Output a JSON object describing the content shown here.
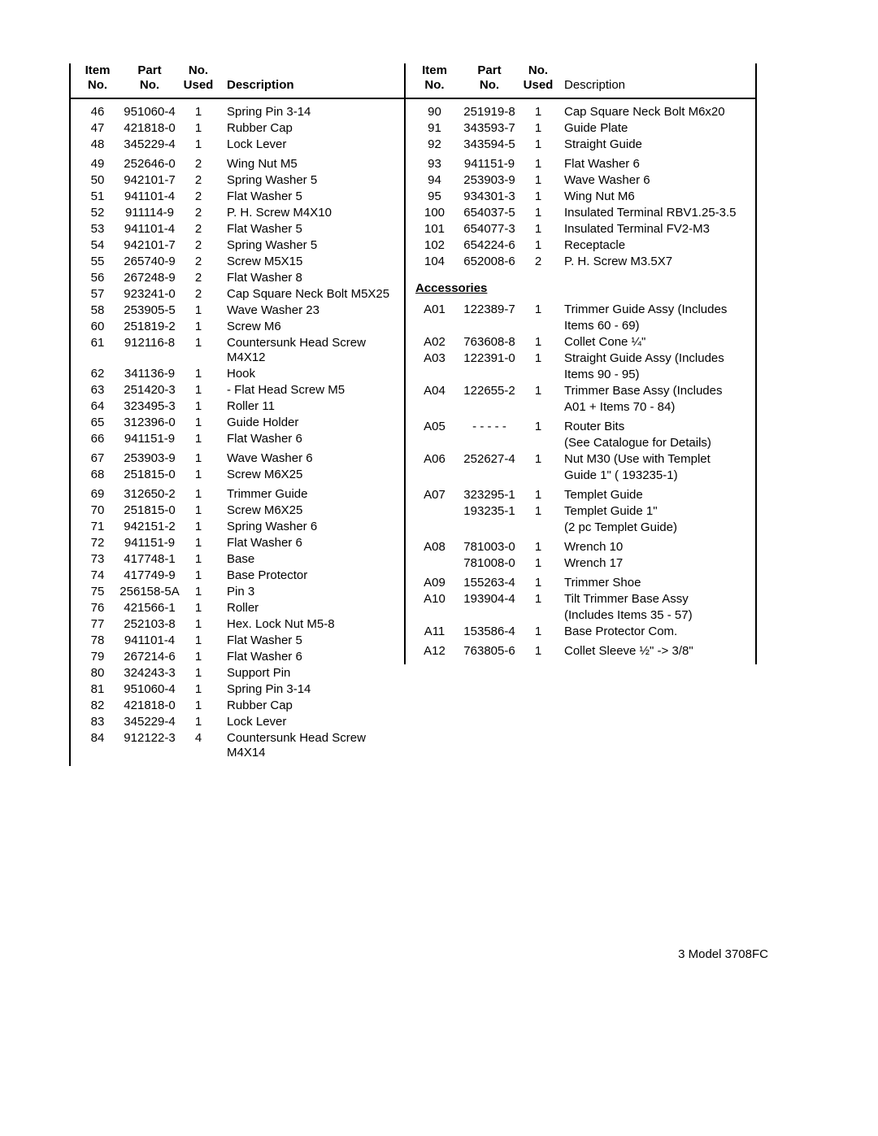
{
  "header": {
    "item1": "Item",
    "item2": "No.",
    "part1": "Part",
    "part2": "No.",
    "used1": "No.",
    "used2": "Used",
    "desc": "Description"
  },
  "left_rows": [
    {
      "i": "46",
      "p": "951060-4",
      "u": "1",
      "d": "Spring Pin 3-14"
    },
    {
      "i": "47",
      "p": "421818-0",
      "u": "1",
      "d": "Rubber Cap"
    },
    {
      "i": "48",
      "p": "345229-4",
      "u": "1",
      "d": "Lock Lever"
    },
    {
      "gap": true
    },
    {
      "i": "49",
      "p": "252646-0",
      "u": "2",
      "d": "Wing Nut M5"
    },
    {
      "i": "50",
      "p": "942101-7",
      "u": "2",
      "d": "Spring Washer 5"
    },
    {
      "i": "51",
      "p": "941101-4",
      "u": "2",
      "d": "Flat Washer 5"
    },
    {
      "i": "52",
      "p": "911114-9",
      "u": "2",
      "d": "P. H.  Screw M4X10"
    },
    {
      "i": "53",
      "p": "941101-4",
      "u": "2",
      "d": "Flat Washer 5"
    },
    {
      "i": "54",
      "p": "942101-7",
      "u": "2",
      "d": "Spring Washer 5"
    },
    {
      "i": "55",
      "p": "265740-9",
      "u": "2",
      "d": "Screw M5X15"
    },
    {
      "i": "56",
      "p": "267248-9",
      "u": "2",
      "d": "Flat Washer 8"
    },
    {
      "i": "57",
      "p": "923241-0",
      "u": "2",
      "d": "Cap Square Neck Bolt M5X25"
    },
    {
      "i": "58",
      "p": "253905-5",
      "u": "1",
      "d": "Wave Washer 23"
    },
    {
      "i": "60",
      "p": "251819-2",
      "u": "1",
      "d": "Screw M6"
    },
    {
      "i": "61",
      "p": "912116-8",
      "u": "1",
      "d": "Countersunk Head Screw M4X12"
    },
    {
      "i": "62",
      "p": "341136-9",
      "u": "1",
      "d": "Hook"
    },
    {
      "i": "63",
      "p": "251420-3",
      "u": "1",
      "d": " - Flat Head Screw M5"
    },
    {
      "i": "64",
      "p": "323495-3",
      "u": "1",
      "d": "Roller 11"
    },
    {
      "i": "65",
      "p": "312396-0",
      "u": "1",
      "d": "Guide Holder"
    },
    {
      "i": "66",
      "p": "941151-9",
      "u": "1",
      "d": "Flat Washer 6"
    },
    {
      "gap": true
    },
    {
      "i": "67",
      "p": "253903-9",
      "u": "1",
      "d": "Wave Washer 6"
    },
    {
      "i": "68",
      "p": "251815-0",
      "u": "1",
      "d": "Screw M6X25"
    },
    {
      "gap": true
    },
    {
      "i": "69",
      "p": "312650-2",
      "u": "1",
      "d": "Trimmer Guide"
    },
    {
      "i": "70",
      "p": "251815-0",
      "u": "1",
      "d": "Screw M6X25"
    },
    {
      "i": "71",
      "p": "942151-2",
      "u": "1",
      "d": "Spring Washer 6"
    },
    {
      "i": "72",
      "p": "941151-9",
      "u": "1",
      "d": "Flat Washer 6"
    },
    {
      "i": "73",
      "p": "417748-1",
      "u": "1",
      "d": "Base"
    },
    {
      "i": "74",
      "p": "417749-9",
      "u": "1",
      "d": "Base Protector"
    },
    {
      "i": "75",
      "p": "256158-5A",
      "u": "1",
      "d": "Pin 3"
    },
    {
      "i": "76",
      "p": "421566-1",
      "u": "1",
      "d": "Roller"
    },
    {
      "i": "77",
      "p": "252103-8",
      "u": "1",
      "d": "Hex. Lock Nut M5-8"
    },
    {
      "i": "78",
      "p": "941101-4",
      "u": "1",
      "d": "Flat Washer 5"
    },
    {
      "i": "79",
      "p": "267214-6",
      "u": "1",
      "d": "Flat Washer 6"
    },
    {
      "i": "80",
      "p": "324243-3",
      "u": "1",
      "d": "Support Pin"
    },
    {
      "i": "81",
      "p": "951060-4",
      "u": "1",
      "d": "Spring Pin 3-14"
    },
    {
      "i": "82",
      "p": "421818-0",
      "u": "1",
      "d": "Rubber Cap"
    },
    {
      "i": "83",
      "p": "345229-4",
      "u": "1",
      "d": "Lock Lever"
    },
    {
      "i": "84",
      "p": "912122-3",
      "u": "4",
      "d": "Countersunk Head Screw M4X14"
    }
  ],
  "right_rows_top": [
    {
      "i": "90",
      "p": "251919-8",
      "u": "1",
      "d": "Cap Square Neck Bolt M6x20"
    },
    {
      "i": "91",
      "p": "343593-7",
      "u": "1",
      "d": "Guide Plate"
    },
    {
      "i": "92",
      "p": "343594-5",
      "u": "1",
      "d": "Straight Guide"
    },
    {
      "gap": true
    },
    {
      "i": "93",
      "p": "941151-9",
      "u": "1",
      "d": "Flat Washer 6"
    },
    {
      "i": "94",
      "p": "253903-9",
      "u": "1",
      "d": "Wave Washer 6"
    },
    {
      "i": "95",
      "p": "934301-3",
      "u": "1",
      "d": "Wing Nut M6"
    },
    {
      "i": "100",
      "p": "654037-5",
      "u": "1",
      "d": "Insulated Terminal RBV1.25-3.5"
    },
    {
      "i": "101",
      "p": "654077-3",
      "u": "1",
      "d": "Insulated Terminal FV2-M3"
    },
    {
      "i": "102",
      "p": "654224-6",
      "u": "1",
      "d": "Receptacle"
    },
    {
      "i": "104",
      "p": "652008-6",
      "u": "2",
      "d": "P. H. Screw M3.5X7"
    }
  ],
  "accessories_title": "Accessories",
  "right_rows_acc": [
    {
      "i": "A01",
      "p": "122389-7",
      "u": "1",
      "d": "Trimmer Guide Assy (Includes"
    },
    {
      "i": "",
      "p": "",
      "u": "",
      "d": "Items 60 - 69)"
    },
    {
      "i": "A02",
      "p": "763608-8",
      "u": "1",
      "d": "Collet Cone ¼\""
    },
    {
      "i": "A03",
      "p": "122391-0",
      "u": "1",
      "d": "Straight Guide Assy (Includes"
    },
    {
      "i": "",
      "p": "",
      "u": "",
      "d": "Items 90 - 95)"
    },
    {
      "i": "A04",
      "p": "122655-2",
      "u": "1",
      "d": "Trimmer Base Assy (Includes"
    },
    {
      "i": "",
      "p": "",
      "u": "",
      "d": "A01 + Items 70 - 84)"
    },
    {
      "gap": true
    },
    {
      "i": "A05",
      "p": "- - - - -",
      "u": "1",
      "d": "Router Bits"
    },
    {
      "i": "",
      "p": "",
      "u": "",
      "d": "(See Catalogue for Details)"
    },
    {
      "i": "A06",
      "p": "252627-4",
      "u": "1",
      "d": "Nut M30 (Use with Templet"
    },
    {
      "i": "",
      "p": "",
      "u": "",
      "d": "Guide 1\" ( 193235-1)"
    },
    {
      "gap": true
    },
    {
      "i": "A07",
      "p": "323295-1",
      "u": "1",
      "d": "Templet Guide"
    },
    {
      "i": "",
      "p": "193235-1",
      "u": "1",
      "d": "Templet Guide 1\""
    },
    {
      "i": "",
      "p": "",
      "u": "",
      "d": "(2 pc Templet Guide)"
    },
    {
      "gap": true
    },
    {
      "i": "A08",
      "p": "781003-0",
      "u": "1",
      "d": "Wrench 10"
    },
    {
      "i": "",
      "p": "781008-0",
      "u": "1",
      "d": "Wrench 17"
    },
    {
      "gap": true
    },
    {
      "i": "A09",
      "p": "155263-4",
      "u": "1",
      "d": "Trimmer Shoe"
    },
    {
      "i": "A10",
      "p": "193904-4",
      "u": "1",
      "d": "Tilt Trimmer Base Assy"
    },
    {
      "i": "",
      "p": "",
      "u": "",
      "d": "(Includes Items 35 - 57)"
    },
    {
      "i": "A11",
      "p": "153586-4",
      "u": "1",
      "d": "Base Protector Com."
    },
    {
      "gap": true
    },
    {
      "i": "A12",
      "p": "763805-6",
      "u": "1",
      "d": "Collet Sleeve ½\"  -> 3/8\""
    }
  ],
  "footer": "3  Model  3708FC"
}
